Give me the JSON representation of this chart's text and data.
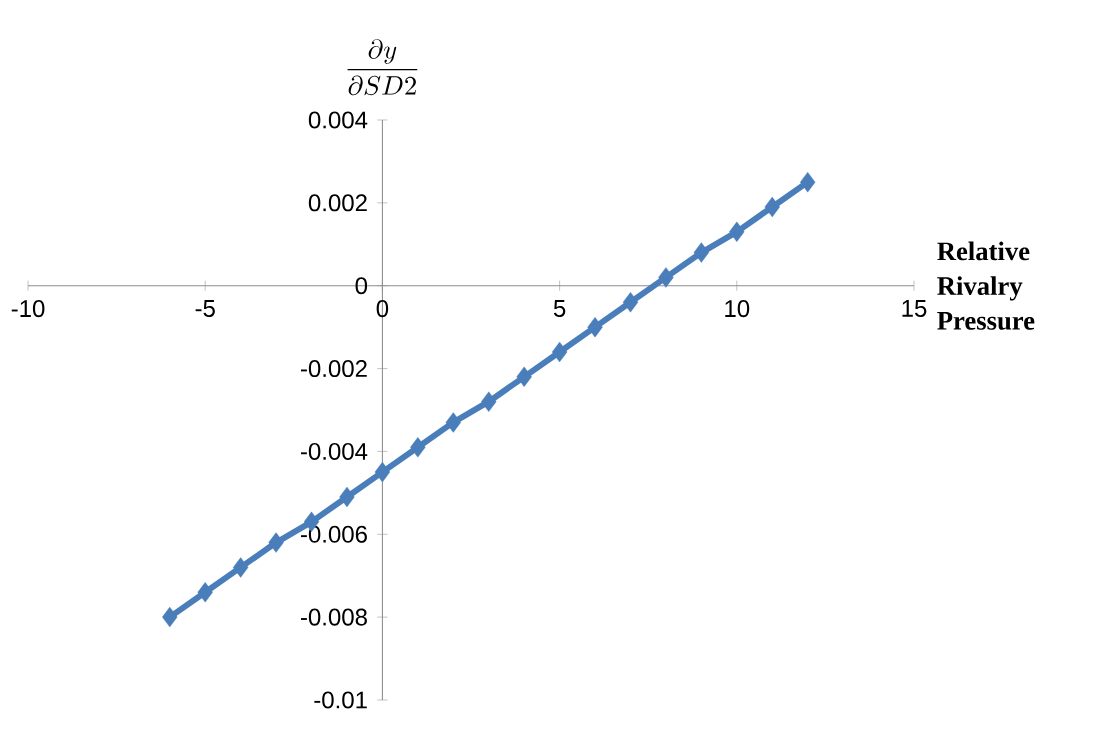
{
  "chart_data": {
    "type": "line",
    "ylabel": "\\frac{\\partial y}{\\partial SD2}",
    "xlabel": "Relative Rivalry Pressure",
    "x": [
      -6,
      -5,
      -4,
      -3,
      -2,
      -1,
      0,
      1,
      2,
      3,
      4,
      5,
      6,
      7,
      8,
      9,
      10,
      11,
      12
    ],
    "series": [
      {
        "color": "#4a7ebb",
        "values": [
          -0.008,
          -0.0074,
          -0.0068,
          -0.0062,
          -0.0057,
          -0.0051,
          -0.0045,
          -0.0039,
          -0.0033,
          -0.0028,
          -0.0022,
          -0.0016,
          -0.001,
          -0.0004,
          0.0002,
          0.0008,
          0.0013,
          0.0019,
          0.0025
        ]
      }
    ],
    "xlim": [
      -10,
      15
    ],
    "xticks": [
      -10,
      -5,
      0,
      5,
      10,
      15
    ],
    "ylim": [
      -0.01,
      0.004
    ],
    "yticks": [
      -0.01,
      -0.008,
      -0.006,
      -0.004,
      -0.002,
      0,
      0.002,
      0.004
    ],
    "marker": "diamond",
    "line_style": "solid"
  }
}
